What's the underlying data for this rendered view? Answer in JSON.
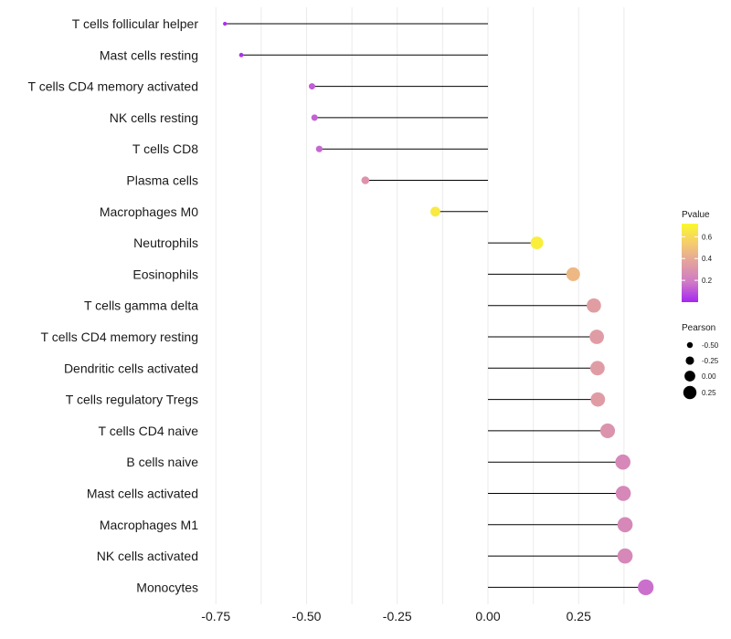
{
  "chart_data": {
    "type": "lollipop",
    "title": "",
    "xlabel": "",
    "ylabel": "",
    "xlim": [
      -0.78,
      0.45
    ],
    "x_ticks": [
      -0.75,
      -0.5,
      -0.25,
      0.0,
      0.25
    ],
    "x_tick_labels": [
      "-0.75",
      "-0.50",
      "-0.25",
      "0.00",
      "0.25"
    ],
    "grid": true,
    "points": [
      {
        "label": "T cells follicular helper",
        "pearson": -0.725,
        "pvalue": 0.02
      },
      {
        "label": "Mast cells resting",
        "pearson": -0.68,
        "pvalue": 0.03
      },
      {
        "label": "T cells CD4 memory activated",
        "pearson": -0.485,
        "pvalue": 0.12
      },
      {
        "label": "NK cells resting",
        "pearson": -0.478,
        "pvalue": 0.13
      },
      {
        "label": "T cells CD8",
        "pearson": -0.465,
        "pvalue": 0.14
      },
      {
        "label": "Plasma cells",
        "pearson": -0.338,
        "pvalue": 0.3
      },
      {
        "label": "Macrophages M0",
        "pearson": -0.145,
        "pvalue": 0.66
      },
      {
        "label": "Neutrophils",
        "pearson": 0.135,
        "pvalue": 0.68
      },
      {
        "label": "Eosinophils",
        "pearson": 0.235,
        "pvalue": 0.46
      },
      {
        "label": "T cells gamma delta",
        "pearson": 0.292,
        "pvalue": 0.35
      },
      {
        "label": "T cells CD4 memory resting",
        "pearson": 0.3,
        "pvalue": 0.34
      },
      {
        "label": "Dendritic cells activated",
        "pearson": 0.302,
        "pvalue": 0.34
      },
      {
        "label": "T cells regulatory  Tregs ",
        "pearson": 0.303,
        "pvalue": 0.34
      },
      {
        "label": "T cells CD4 naive",
        "pearson": 0.33,
        "pvalue": 0.3
      },
      {
        "label": "B cells naive",
        "pearson": 0.372,
        "pvalue": 0.25
      },
      {
        "label": "Mast cells activated",
        "pearson": 0.373,
        "pvalue": 0.25
      },
      {
        "label": "Macrophages M1",
        "pearson": 0.378,
        "pvalue": 0.25
      },
      {
        "label": "NK cells activated",
        "pearson": 0.378,
        "pvalue": 0.25
      },
      {
        "label": "Monocytes",
        "pearson": 0.435,
        "pvalue": 0.16
      }
    ],
    "legend_color": {
      "title": "Pvalue",
      "range": [
        0.0,
        0.72
      ],
      "ticks": [
        0.2,
        0.4,
        0.6
      ],
      "tick_labels": [
        "0.2",
        "0.4",
        "0.6"
      ],
      "colors": [
        "#a526f2",
        "#cf79c7",
        "#e2a0a0",
        "#f5cc6e",
        "#fbf82e"
      ]
    },
    "legend_size": {
      "title": "Pearson",
      "values": [
        -0.5,
        -0.25,
        0.0,
        0.25
      ],
      "labels": [
        "-0.50",
        "-0.25",
        "0.00",
        "0.25"
      ]
    }
  }
}
